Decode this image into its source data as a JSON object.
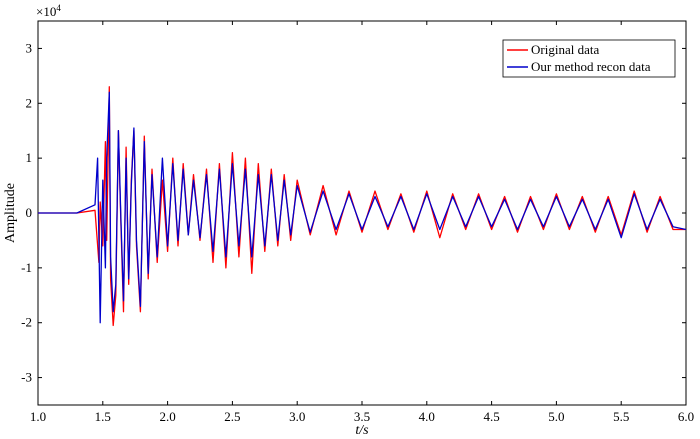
{
  "chart_data": {
    "type": "line",
    "title": "",
    "xlabel": "t/s",
    "ylabel": "Amplitude",
    "y_scale_label": "×10",
    "y_scale_exponent": "4",
    "xlim": [
      1.0,
      6.0
    ],
    "ylim": [
      -3.5,
      3.5
    ],
    "grid": false,
    "legend_placement": "top-right",
    "x_ticks": [
      1.0,
      1.5,
      2.0,
      2.5,
      3.0,
      3.5,
      4.0,
      4.5,
      5.0,
      5.5,
      6.0
    ],
    "x_tick_labels": [
      "1.0",
      "1.5",
      "2.0",
      "2.5",
      "3.0",
      "3.5",
      "4.0",
      "4.5",
      "5.0",
      "5.5",
      "6.0"
    ],
    "y_ticks": [
      -3,
      -2,
      -1,
      0,
      1,
      2,
      3
    ],
    "y_tick_labels": [
      "-3",
      "-2",
      "-1",
      "0",
      "1",
      "2",
      "3"
    ],
    "series": [
      {
        "name": "Original data",
        "color": "#ff0000",
        "x": [
          1.0,
          1.3,
          1.44,
          1.47,
          1.48,
          1.5,
          1.52,
          1.53,
          1.55,
          1.56,
          1.58,
          1.6,
          1.62,
          1.64,
          1.66,
          1.68,
          1.7,
          1.72,
          1.74,
          1.76,
          1.79,
          1.82,
          1.85,
          1.88,
          1.92,
          1.96,
          2.0,
          2.04,
          2.08,
          2.12,
          2.16,
          2.2,
          2.25,
          2.3,
          2.35,
          2.4,
          2.45,
          2.5,
          2.55,
          2.6,
          2.65,
          2.7,
          2.75,
          2.8,
          2.85,
          2.9,
          2.95,
          3.0,
          3.1,
          3.2,
          3.3,
          3.4,
          3.5,
          3.6,
          3.7,
          3.8,
          3.9,
          4.0,
          4.1,
          4.2,
          4.3,
          4.4,
          4.5,
          4.6,
          4.7,
          4.8,
          4.9,
          5.0,
          5.1,
          5.2,
          5.3,
          5.4,
          5.5,
          5.6,
          5.7,
          5.8,
          5.9,
          6.0
        ],
        "y": [
          0.0,
          0.0,
          0.05,
          -0.9,
          0.2,
          -0.6,
          1.3,
          -0.5,
          2.3,
          -1.2,
          -2.05,
          -1.5,
          1.5,
          -0.2,
          -1.8,
          1.2,
          -1.3,
          0.6,
          1.5,
          -0.6,
          -1.8,
          1.4,
          -1.2,
          0.8,
          -0.9,
          0.6,
          -0.7,
          1.0,
          -0.6,
          0.9,
          -0.4,
          0.7,
          -0.5,
          0.8,
          -0.9,
          0.9,
          -1.0,
          1.1,
          -0.8,
          1.0,
          -1.1,
          0.9,
          -0.7,
          0.8,
          -0.6,
          0.7,
          -0.5,
          0.6,
          -0.4,
          0.5,
          -0.4,
          0.4,
          -0.35,
          0.4,
          -0.3,
          0.35,
          -0.35,
          0.4,
          -0.45,
          0.35,
          -0.3,
          0.35,
          -0.3,
          0.3,
          -0.35,
          0.3,
          -0.3,
          0.35,
          -0.3,
          0.3,
          -0.35,
          0.3,
          -0.4,
          0.4,
          -0.35,
          0.3,
          -0.3,
          -0.3
        ]
      },
      {
        "name": "Our method recon data",
        "color": "#0000cc",
        "x": [
          1.0,
          1.3,
          1.44,
          1.46,
          1.48,
          1.5,
          1.52,
          1.53,
          1.55,
          1.56,
          1.58,
          1.6,
          1.62,
          1.64,
          1.66,
          1.68,
          1.7,
          1.72,
          1.74,
          1.76,
          1.79,
          1.82,
          1.85,
          1.88,
          1.92,
          1.96,
          2.0,
          2.04,
          2.08,
          2.12,
          2.16,
          2.2,
          2.25,
          2.3,
          2.35,
          2.4,
          2.45,
          2.5,
          2.55,
          2.6,
          2.65,
          2.7,
          2.75,
          2.8,
          2.85,
          2.9,
          2.95,
          3.0,
          3.1,
          3.2,
          3.3,
          3.4,
          3.5,
          3.6,
          3.7,
          3.8,
          3.9,
          4.0,
          4.1,
          4.2,
          4.3,
          4.4,
          4.5,
          4.6,
          4.7,
          4.8,
          4.9,
          5.0,
          5.1,
          5.2,
          5.3,
          5.4,
          5.5,
          5.6,
          5.7,
          5.8,
          5.9,
          6.0
        ],
        "y": [
          0.0,
          0.0,
          0.15,
          1.0,
          -2.0,
          0.6,
          -1.0,
          1.0,
          2.2,
          -0.8,
          -1.8,
          -1.3,
          1.5,
          -0.1,
          -1.6,
          1.0,
          -1.2,
          0.5,
          1.55,
          -0.5,
          -1.7,
          1.3,
          -1.1,
          0.7,
          -0.8,
          1.0,
          -0.6,
          0.9,
          -0.5,
          0.8,
          -0.4,
          0.6,
          -0.45,
          0.7,
          -0.7,
          0.8,
          -0.8,
          0.9,
          -0.6,
          0.8,
          -0.8,
          0.7,
          -0.6,
          0.7,
          -0.5,
          0.6,
          -0.4,
          0.5,
          -0.35,
          0.4,
          -0.3,
          0.35,
          -0.3,
          0.3,
          -0.25,
          0.3,
          -0.3,
          0.35,
          -0.3,
          0.3,
          -0.25,
          0.3,
          -0.25,
          0.25,
          -0.3,
          0.25,
          -0.25,
          0.3,
          -0.25,
          0.25,
          -0.3,
          0.25,
          -0.45,
          0.35,
          -0.3,
          0.25,
          -0.25,
          -0.3
        ]
      }
    ]
  }
}
